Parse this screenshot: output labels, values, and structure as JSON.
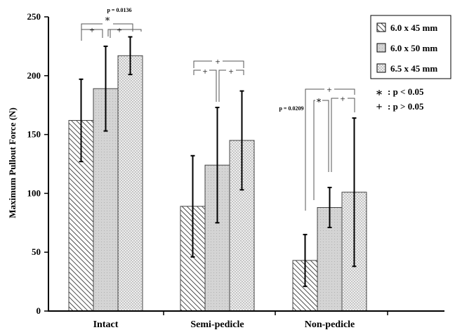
{
  "chart_data": {
    "type": "bar",
    "title": "",
    "ylabel": "Maximum Pullout Force (N)",
    "xlabel": "",
    "ylim": [
      0,
      250
    ],
    "yticks": [
      0,
      50,
      100,
      150,
      200,
      250
    ],
    "categories": [
      "Intact",
      "Semi-pedicle",
      "Non-pedicle"
    ],
    "series": [
      {
        "name": "6.0 x 45 mm",
        "values": [
          162,
          89,
          43
        ],
        "errors": [
          35,
          43,
          22
        ]
      },
      {
        "name": "6.0 x 50 mm",
        "values": [
          189,
          124,
          88
        ],
        "errors": [
          36,
          49,
          17
        ]
      },
      {
        "name": "6.5 x 45 mm",
        "values": [
          217,
          145,
          101
        ],
        "errors": [
          16,
          42,
          63
        ]
      }
    ],
    "legend_position": "top-right",
    "grid": false,
    "significance_key": [
      {
        "symbol": "∗",
        "label": ": p < 0.05"
      },
      {
        "symbol": "+",
        "label": ": p > 0.05"
      }
    ],
    "annotations": {
      "star": "∗",
      "plus": "+",
      "p_intact": "p = 0.0136",
      "p_nonpedicle": "p = 0.0209"
    }
  }
}
